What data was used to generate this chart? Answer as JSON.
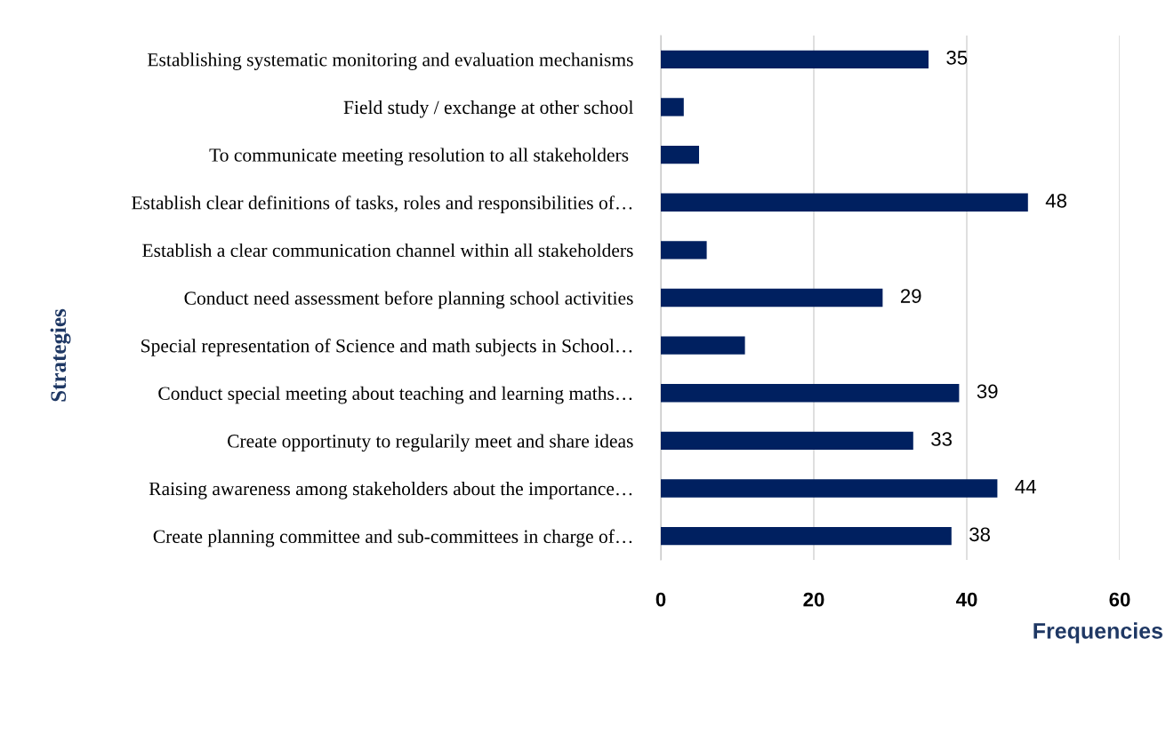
{
  "chart_data": {
    "type": "bar",
    "orientation": "horizontal",
    "categories": [
      "Establishing systematic monitoring and evaluation mechanisms",
      "Field study / exchange at other school",
      "To communicate meeting resolution to all stakeholders ",
      "Establish clear definitions of tasks, roles and responsibilities of…",
      "Establish a clear communication channel within all stakeholders",
      "Conduct need assessment before planning school activities",
      "Special representation of Science and math subjects in School…",
      "Conduct special meeting about teaching and learning maths…",
      "Create opportinuty to regularily meet and share ideas",
      "Raising awareness among stakeholders about the importance…",
      "Create planning committee and sub-committees in charge of…"
    ],
    "values": [
      35,
      3,
      5,
      48,
      6,
      29,
      11,
      39,
      33,
      44,
      38
    ],
    "value_labels": [
      "35",
      null,
      null,
      "48",
      null,
      "29",
      null,
      "39",
      "33",
      "44",
      "38"
    ],
    "color": "#002060",
    "xlabel": "Frequencies",
    "ylabel": "Strategies",
    "xlim": [
      0,
      60
    ],
    "xticks": [
      0,
      20,
      40,
      60
    ],
    "grid": "x"
  }
}
